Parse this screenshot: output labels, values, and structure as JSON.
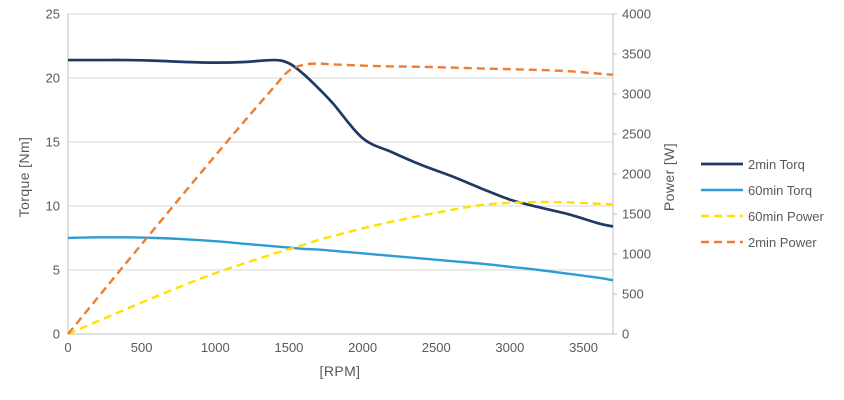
{
  "colors": {
    "background": "#FFFFFF",
    "gridline": "#D9D9D9",
    "axis_line": "#BFBFBF",
    "tick_text": "#595959",
    "series_2min_torq": "#1F3864",
    "series_60min_torq": "#2E9BD5",
    "series_60min_power": "#FFE000",
    "series_2min_power": "#ED7D31"
  },
  "chart_data": {
    "type": "line",
    "title": "",
    "grid": "horizontal",
    "legend_position": "right",
    "x_axis": {
      "label": "[RPM]",
      "min": 0,
      "max": 3700,
      "ticks": [
        0,
        500,
        1000,
        1500,
        2000,
        2500,
        3000,
        3500
      ]
    },
    "y_left": {
      "label": "Torque [Nm]",
      "min": 0,
      "max": 25,
      "ticks": [
        0,
        5,
        10,
        15,
        20,
        25
      ]
    },
    "y_right": {
      "label": "Power [W]",
      "min": 0,
      "max": 4000,
      "ticks": [
        0,
        500,
        1000,
        1500,
        2000,
        2500,
        3000,
        3500,
        4000
      ]
    },
    "x": [
      0,
      200,
      400,
      600,
      800,
      1000,
      1200,
      1400,
      1500,
      1600,
      1700,
      1800,
      2000,
      2200,
      2400,
      2600,
      2800,
      3000,
      3200,
      3400,
      3600,
      3700
    ],
    "series": [
      {
        "name": "2min Torq",
        "axis": "left",
        "color": "#1F3864",
        "dash": "solid",
        "width": 2.7,
        "values": [
          21.4,
          21.4,
          21.4,
          21.35,
          21.25,
          21.2,
          21.25,
          21.4,
          21.15,
          20.3,
          19.2,
          18.0,
          15.3,
          14.2,
          13.2,
          12.35,
          11.4,
          10.5,
          9.9,
          9.35,
          8.65,
          8.4
        ]
      },
      {
        "name": "60min Torq",
        "axis": "left",
        "color": "#2E9BD5",
        "dash": "solid",
        "width": 2.4,
        "values": [
          7.5,
          7.55,
          7.55,
          7.5,
          7.4,
          7.25,
          7.05,
          6.85,
          6.75,
          6.65,
          6.6,
          6.5,
          6.3,
          6.1,
          5.9,
          5.7,
          5.5,
          5.25,
          5.0,
          4.7,
          4.4,
          4.2
        ]
      },
      {
        "name": "60min Power",
        "axis": "right",
        "color": "#FFE000",
        "dash": "dashed",
        "width": 2.4,
        "values": [
          0,
          158,
          316,
          470,
          620,
          760,
          885,
          1005,
          1060,
          1115,
          1175,
          1225,
          1320,
          1405,
          1480,
          1550,
          1610,
          1640,
          1650,
          1645,
          1628,
          1620
        ]
      },
      {
        "name": "2min Power",
        "axis": "right",
        "color": "#ED7D31",
        "dash": "dashed",
        "width": 2.4,
        "values": [
          0,
          450,
          900,
          1345,
          1790,
          2230,
          2665,
          3090,
          3290,
          3365,
          3380,
          3370,
          3355,
          3345,
          3340,
          3330,
          3320,
          3310,
          3300,
          3285,
          3255,
          3240
        ]
      }
    ]
  }
}
